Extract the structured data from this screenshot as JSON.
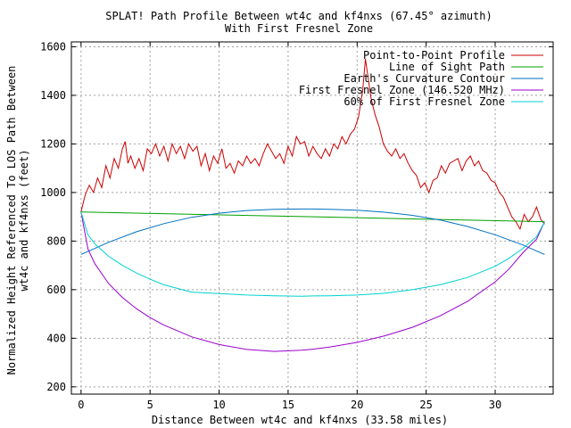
{
  "chart_data": {
    "type": "line",
    "title": "SPLAT! Path Profile Between wt4c and kf4nxs (67.45° azimuth)",
    "subtitle": "With First Fresnel Zone",
    "xlabel": "Distance Between wt4c and kf4nxs (33.58 miles)",
    "ylabel_line1": "Normalized Height Referenced To LOS Path Between",
    "ylabel_line2": "wt4c and kf4nxs (feet)",
    "xlim": [
      -0.7,
      34.2
    ],
    "ylim": [
      170,
      1620
    ],
    "x_ticks": [
      0,
      5,
      10,
      15,
      20,
      25,
      30
    ],
    "x_tick_labels": [
      "0",
      "5",
      "10",
      "15",
      "20",
      "25",
      "30"
    ],
    "y_ticks": [
      200,
      400,
      600,
      800,
      1000,
      1200,
      1400,
      1600
    ],
    "y_tick_labels": [
      "200",
      "400",
      "600",
      "800",
      "1000",
      "1200",
      "1400",
      "1600"
    ],
    "grid": true,
    "legend_position": "top-right",
    "series": [
      {
        "name": "Point-to-Point Profile",
        "color": "#cc0000",
        "x": [
          0,
          0.3,
          0.6,
          0.9,
          1.2,
          1.5,
          1.8,
          2.1,
          2.4,
          2.7,
          3.0,
          3.2,
          3.4,
          3.6,
          3.9,
          4.2,
          4.5,
          4.8,
          5.1,
          5.4,
          5.7,
          6.0,
          6.3,
          6.6,
          6.9,
          7.2,
          7.5,
          7.8,
          8.1,
          8.4,
          8.7,
          9.0,
          9.3,
          9.6,
          9.9,
          10.2,
          10.5,
          10.8,
          11.1,
          11.4,
          11.7,
          12.0,
          12.3,
          12.6,
          12.9,
          13.2,
          13.5,
          13.8,
          14.1,
          14.4,
          14.7,
          15.0,
          15.3,
          15.6,
          15.9,
          16.2,
          16.5,
          16.8,
          17.1,
          17.4,
          17.7,
          18.0,
          18.3,
          18.6,
          18.9,
          19.2,
          19.5,
          19.8,
          20.1,
          20.4,
          20.6,
          20.8,
          21.0,
          21.3,
          21.6,
          21.9,
          22.2,
          22.5,
          22.8,
          23.1,
          23.4,
          23.7,
          24.0,
          24.3,
          24.6,
          24.9,
          25.2,
          25.5,
          25.8,
          26.1,
          26.4,
          26.7,
          27.0,
          27.3,
          27.6,
          27.9,
          28.2,
          28.5,
          28.8,
          29.1,
          29.4,
          29.7,
          30.0,
          30.3,
          30.6,
          30.9,
          31.2,
          31.5,
          31.8,
          32.1,
          32.4,
          32.7,
          33.0,
          33.3,
          33.58
        ],
        "values": [
          920,
          990,
          1030,
          1000,
          1060,
          1020,
          1110,
          1060,
          1140,
          1100,
          1180,
          1210,
          1120,
          1150,
          1100,
          1140,
          1090,
          1180,
          1160,
          1200,
          1150,
          1190,
          1130,
          1200,
          1160,
          1190,
          1140,
          1200,
          1170,
          1190,
          1110,
          1160,
          1090,
          1150,
          1120,
          1180,
          1100,
          1120,
          1080,
          1130,
          1110,
          1150,
          1120,
          1140,
          1110,
          1160,
          1200,
          1170,
          1140,
          1160,
          1120,
          1190,
          1150,
          1230,
          1200,
          1210,
          1150,
          1190,
          1160,
          1140,
          1180,
          1150,
          1200,
          1180,
          1230,
          1200,
          1240,
          1260,
          1310,
          1420,
          1550,
          1470,
          1390,
          1320,
          1270,
          1200,
          1170,
          1150,
          1180,
          1140,
          1160,
          1120,
          1090,
          1070,
          1020,
          1040,
          1000,
          1050,
          1060,
          1110,
          1080,
          1120,
          1130,
          1140,
          1090,
          1130,
          1150,
          1110,
          1130,
          1090,
          1080,
          1050,
          1040,
          1000,
          980,
          940,
          900,
          880,
          850,
          910,
          880,
          900,
          940,
          890,
          870
        ]
      },
      {
        "name": "Line of Sight Path",
        "color": "#00a000",
        "x": [
          0,
          33.58
        ],
        "values": [
          920,
          880
        ]
      },
      {
        "name": "Earth's Curvature Contour",
        "color": "#0070c0",
        "x": [
          0,
          2,
          4,
          6,
          8,
          10,
          12,
          14,
          16,
          16.79,
          18,
          20,
          22,
          24,
          26,
          28,
          30,
          32,
          33.58
        ],
        "values": [
          745,
          795,
          838,
          872,
          898,
          915,
          926,
          931,
          932,
          932,
          931,
          927,
          919,
          906,
          887,
          860,
          826,
          784,
          745
        ]
      },
      {
        "name": "First Fresnel Zone (146.520 MHz)",
        "color": "#9900cc",
        "x": [
          0,
          0.5,
          1,
          2,
          3,
          4,
          5,
          6,
          8,
          10,
          12,
          14,
          16,
          16.79,
          18,
          20,
          22,
          24,
          26,
          28,
          30,
          31,
          32,
          33,
          33.58
        ],
        "values": [
          920,
          767,
          707,
          625,
          568,
          522,
          485,
          454,
          406,
          374,
          354,
          346,
          351,
          355,
          364,
          383,
          410,
          445,
          492,
          552,
          632,
          685,
          752,
          808,
          880
        ]
      },
      {
        "name": "60% of First Fresnel Zone",
        "color": "#00d0d0",
        "x": [
          0,
          0.5,
          1,
          2,
          3,
          4,
          5,
          6,
          8,
          10,
          12,
          14,
          16,
          16.79,
          18,
          20,
          22,
          24,
          26,
          28,
          30,
          31,
          32,
          33,
          33.58
        ],
        "values": [
          920,
          826,
          789,
          737,
          700,
          669,
          643,
          620,
          590,
          584,
          578,
          575,
          573,
          574,
          575,
          578,
          585,
          600,
          620,
          650,
          696,
          729,
          770,
          818,
          880
        ]
      }
    ]
  }
}
